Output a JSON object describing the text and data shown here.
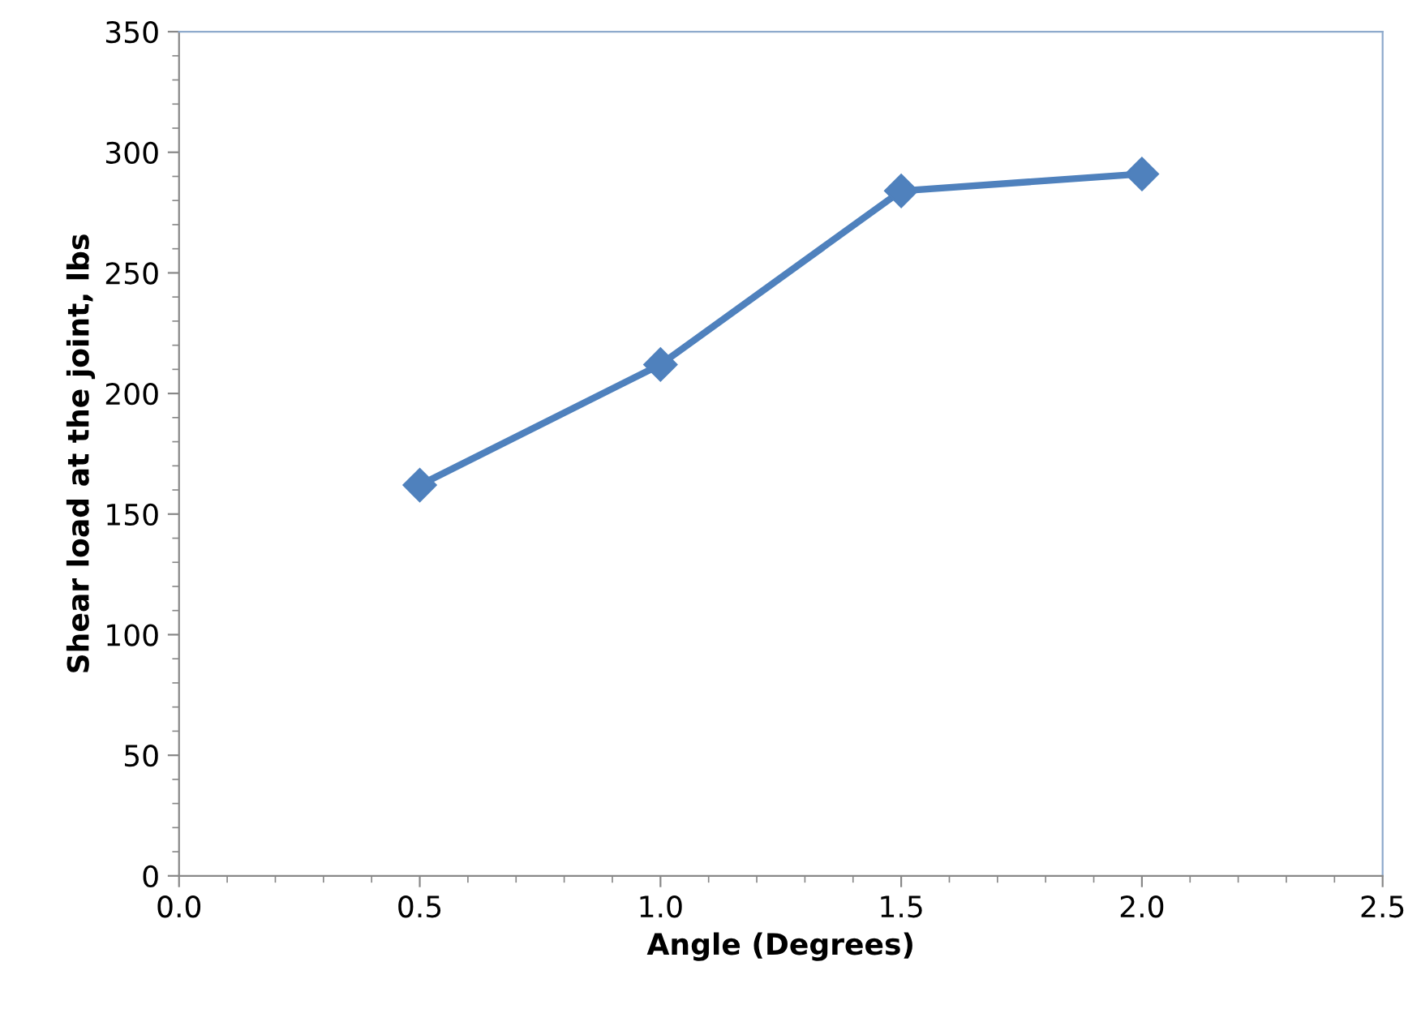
{
  "chart_data": {
    "type": "line",
    "xlabel": "Angle (Degrees)",
    "ylabel": "Shear load at the joint, lbs",
    "x": [
      0.5,
      1.0,
      1.5,
      2.0
    ],
    "series": [
      {
        "color": "#4f81bd",
        "values": [
          162,
          212,
          284,
          291
        ]
      }
    ],
    "marker": "diamond",
    "line_style": "solid",
    "grid": false,
    "legend": false,
    "xlim": [
      0,
      2.5
    ],
    "xticks": [
      {
        "value": 0,
        "label": "0.0"
      },
      {
        "value": 0.5,
        "label": "0.5"
      },
      {
        "value": 1,
        "label": "1.0"
      },
      {
        "value": 1.5,
        "label": "1.5"
      },
      {
        "value": 2,
        "label": "2.0"
      },
      {
        "value": 2.5,
        "label": "2.5"
      }
    ],
    "ylim": [
      0,
      350
    ],
    "yticks": [
      0,
      50,
      100,
      150,
      200,
      250,
      300,
      350
    ]
  }
}
